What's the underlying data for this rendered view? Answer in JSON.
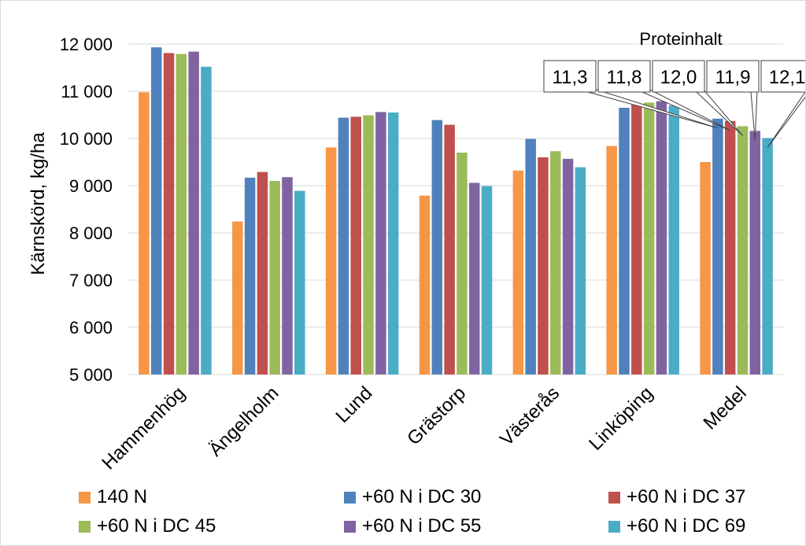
{
  "chart_data": {
    "type": "bar",
    "title": "",
    "xlabel": "",
    "ylabel": "Kärnskörd, kg/ha",
    "ylim": [
      5000,
      12000
    ],
    "yticks": [
      5000,
      6000,
      7000,
      8000,
      9000,
      10000,
      11000,
      12000
    ],
    "ytick_labels": [
      "5 000",
      "6 000",
      "7 000",
      "8 000",
      "9 000",
      "10 000",
      "11 000",
      "12 000"
    ],
    "grid": true,
    "legend_position": "bottom",
    "categories": [
      "Hammenhög",
      "Ängelholm",
      "Lund",
      "Grästorp",
      "Västerås",
      "Linköping",
      "Medel"
    ],
    "series": [
      {
        "name": "140 N",
        "color": "#f79646",
        "values": [
          10980,
          8240,
          9810,
          8790,
          9320,
          9840,
          9500
        ]
      },
      {
        "name": "+60 N i DC 30",
        "color": "#4f81bd",
        "values": [
          11930,
          9170,
          10440,
          10390,
          9990,
          10650,
          10420
        ]
      },
      {
        "name": "+60 N i DC 37",
        "color": "#c0504d",
        "values": [
          11810,
          9290,
          10460,
          10290,
          9600,
          10720,
          10370
        ]
      },
      {
        "name": "+60 N i DC 45",
        "color": "#9bbb59",
        "values": [
          11790,
          9100,
          10490,
          9700,
          9730,
          10760,
          10260
        ]
      },
      {
        "name": "+60 N i DC 55",
        "color": "#8064a2",
        "values": [
          11840,
          9180,
          10560,
          9060,
          9570,
          10790,
          10160
        ]
      },
      {
        "name": "+60 N i DC 69",
        "color": "#4bacc6",
        "values": [
          11520,
          8890,
          10550,
          8990,
          9390,
          10700,
          10010
        ]
      }
    ],
    "annotation_title": "Proteinhalt",
    "callouts": [
      {
        "label": "11,3",
        "series": 1
      },
      {
        "label": "11,8",
        "series": 2
      },
      {
        "label": "12,0",
        "series": 3
      },
      {
        "label": "11,9",
        "series": 4
      },
      {
        "label": "12,1",
        "series": 5
      }
    ]
  }
}
